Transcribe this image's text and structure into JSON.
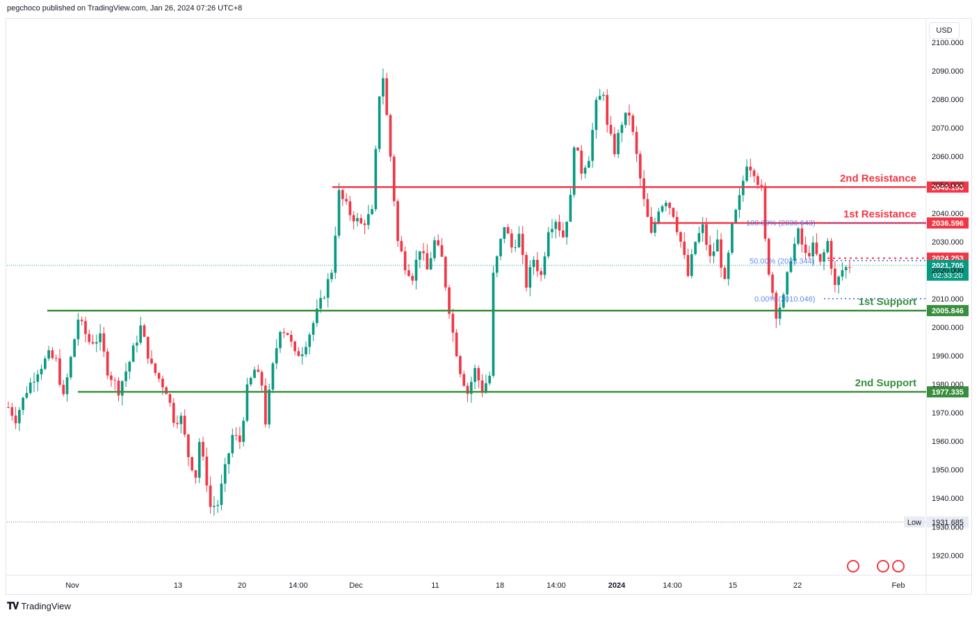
{
  "header": {
    "text": "pegchoco published on TradingView.com, Jan 26, 2024 07:26 UTC+8"
  },
  "footer": {
    "brand": "TradingView"
  },
  "currency": "USD",
  "colors": {
    "up": "#089981",
    "down": "#f23645",
    "resistance": "#f23645",
    "support": "#388e3c",
    "fib": "#2962ff"
  },
  "chart_data": {
    "type": "candlestick",
    "ylim": [
      1913,
      2108
    ],
    "y_ticks": [
      1920,
      1930,
      1940,
      1950,
      1960,
      1970,
      1980,
      1990,
      2000,
      2010,
      2020,
      2030,
      2040,
      2050,
      2060,
      2070,
      2080,
      2090,
      2100
    ],
    "y_tick_labels": [
      "1920.000",
      "1930.000",
      "1940.000",
      "1950.000",
      "1960.000",
      "1970.000",
      "1980.000",
      "1990.000",
      "2000.000",
      "2010.000",
      "2020.000",
      "2030.000",
      "2040.000",
      "2050.000",
      "2060.000",
      "2070.000",
      "2080.000",
      "2090.000",
      "2100.000"
    ],
    "x_labels": [
      {
        "label": "Nov",
        "bold": false
      },
      {
        "label": "13",
        "bold": false
      },
      {
        "label": "20",
        "bold": false
      },
      {
        "label": "14:00",
        "bold": false
      },
      {
        "label": "Dec",
        "bold": false
      },
      {
        "label": "11",
        "bold": false
      },
      {
        "label": "18",
        "bold": false
      },
      {
        "label": "14:00",
        "bold": false
      },
      {
        "label": "2024",
        "bold": true
      },
      {
        "label": "14:00",
        "bold": false
      },
      {
        "label": "15",
        "bold": false
      },
      {
        "label": "22",
        "bold": false
      },
      {
        "label": "Feb",
        "bold": false
      }
    ],
    "levels": [
      {
        "name": "2nd Resistance",
        "value": 2049.193,
        "label": "2049.193",
        "kind": "resistance"
      },
      {
        "name": "1st Resistance",
        "value": 2036.596,
        "label": "2036.596",
        "kind": "resistance"
      },
      {
        "name": "1st Support",
        "value": 2005.846,
        "label": "2005.846",
        "kind": "support"
      },
      {
        "name": "2nd Support",
        "value": 1977.335,
        "label": "1977.335",
        "kind": "support"
      }
    ],
    "fib": [
      {
        "text": "100.00% (2036.643)",
        "value": 2036.643
      },
      {
        "text": "50.00% (2023.344)",
        "value": 2023.344
      },
      {
        "text": "0.00% (2010.046)",
        "value": 2010.046
      }
    ],
    "last_price": {
      "value": 2021.705,
      "label": "2021.705",
      "countdown": "02:33:20"
    },
    "dotted_level": {
      "value": 2024.253,
      "label": "2024.253"
    },
    "low": {
      "label": "Low",
      "value": 1931.685,
      "value_label": "1931.685"
    },
    "path": [
      [
        1972,
        0
      ],
      [
        1968,
        2
      ],
      [
        1978,
        5
      ],
      [
        1985,
        8
      ],
      [
        1990,
        11
      ],
      [
        1988,
        13
      ],
      [
        1975,
        15
      ],
      [
        2003,
        19
      ],
      [
        1995,
        22
      ],
      [
        1996,
        25
      ],
      [
        1985,
        27
      ],
      [
        1978,
        30
      ],
      [
        1988,
        33
      ],
      [
        2000,
        36
      ],
      [
        1986,
        39
      ],
      [
        1982,
        41
      ],
      [
        1978,
        43
      ],
      [
        1968,
        45
      ],
      [
        1968,
        47
      ],
      [
        1955,
        49
      ],
      [
        1948,
        51
      ],
      [
        1960,
        52
      ],
      [
        1946,
        54
      ],
      [
        1937,
        55
      ],
      [
        1938,
        57
      ],
      [
        1950,
        59
      ],
      [
        1962,
        61
      ],
      [
        1960,
        63
      ],
      [
        1978,
        65
      ],
      [
        1985,
        67
      ],
      [
        1980,
        69
      ],
      [
        1967,
        70
      ],
      [
        1986,
        72
      ],
      [
        2000,
        74
      ],
      [
        1998,
        76
      ],
      [
        1990,
        78
      ],
      [
        1992,
        80
      ],
      [
        1998,
        82
      ],
      [
        2005,
        84
      ],
      [
        2012,
        86
      ],
      [
        2020,
        88
      ],
      [
        2047,
        90
      ],
      [
        2040,
        93
      ],
      [
        2036,
        96
      ],
      [
        2040,
        99
      ],
      [
        2082,
        101
      ],
      [
        2088,
        102
      ],
      [
        2060,
        104
      ],
      [
        2030,
        106
      ],
      [
        2022,
        108
      ],
      [
        2018,
        110
      ],
      [
        2028,
        112
      ],
      [
        2020,
        114
      ],
      [
        2030,
        116
      ],
      [
        2024,
        118
      ],
      [
        2015,
        119
      ],
      [
        1998,
        121
      ],
      [
        1985,
        123
      ],
      [
        1977,
        125
      ],
      [
        1985,
        127
      ],
      [
        1978,
        129
      ],
      [
        1983,
        131
      ],
      [
        2018,
        132
      ],
      [
        2036,
        135
      ],
      [
        2028,
        137
      ],
      [
        2032,
        139
      ],
      [
        2015,
        141
      ],
      [
        2024,
        143
      ],
      [
        2018,
        145
      ],
      [
        2035,
        147
      ],
      [
        2038,
        149
      ],
      [
        2032,
        151
      ],
      [
        2045,
        153
      ],
      [
        2065,
        154
      ],
      [
        2055,
        156
      ],
      [
        2060,
        158
      ],
      [
        2078,
        160
      ],
      [
        2083,
        162
      ],
      [
        2070,
        163
      ],
      [
        2062,
        165
      ],
      [
        2072,
        167
      ],
      [
        2075,
        169
      ],
      [
        2060,
        171
      ],
      [
        2044,
        173
      ],
      [
        2032,
        175
      ],
      [
        2042,
        177
      ],
      [
        2045,
        179
      ],
      [
        2040,
        181
      ],
      [
        2030,
        183
      ],
      [
        2018,
        185
      ],
      [
        2030,
        187
      ],
      [
        2035,
        189
      ],
      [
        2024,
        191
      ],
      [
        2030,
        193
      ],
      [
        2015,
        195
      ],
      [
        2035,
        197
      ],
      [
        2045,
        199
      ],
      [
        2058,
        201
      ],
      [
        2055,
        203
      ],
      [
        2048,
        205
      ],
      [
        2030,
        206
      ],
      [
        2020,
        207
      ],
      [
        2005,
        209
      ],
      [
        2010,
        211
      ],
      [
        2025,
        213
      ],
      [
        2033,
        215
      ],
      [
        2025,
        217
      ],
      [
        2028,
        219
      ],
      [
        2022,
        221
      ],
      [
        2030,
        223
      ],
      [
        2014,
        225
      ],
      [
        2020,
        227
      ],
      [
        2021.705,
        229
      ]
    ],
    "n_points": 230
  }
}
